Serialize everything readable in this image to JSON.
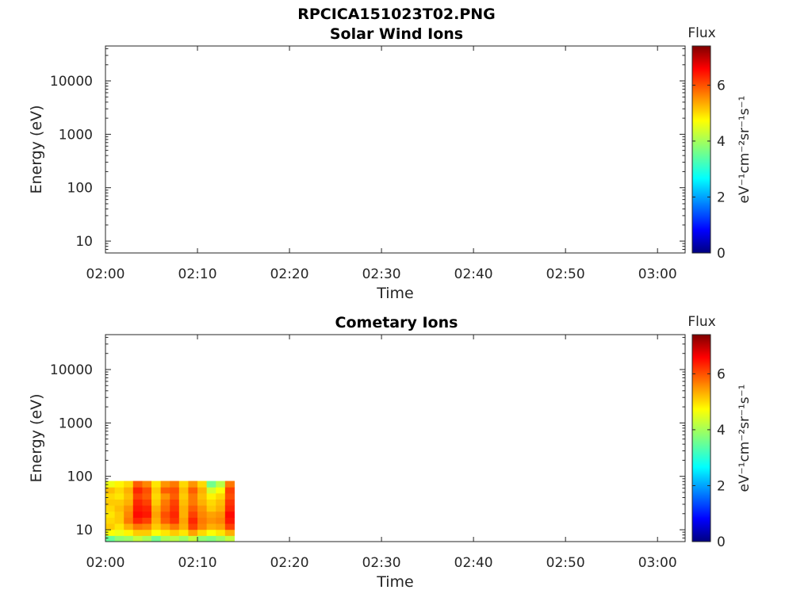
{
  "figure_title": "RPCICA151023T02.PNG",
  "chart_data": [
    {
      "type": "heatmap",
      "title": "Solar Wind Ions",
      "xlabel": "Time",
      "ylabel": "Energy (eV)",
      "x_ticks": [
        "02:00",
        "02:10",
        "02:20",
        "02:30",
        "02:40",
        "02:50",
        "03:00"
      ],
      "xlim": [
        "02:00",
        "03:03"
      ],
      "y_scale": "log",
      "y_ticks": [
        10,
        100,
        1000,
        10000
      ],
      "y_tick_labels": [
        "10",
        "100",
        "1000",
        "10000"
      ],
      "ylim": [
        6,
        45000
      ],
      "colorbar": {
        "label": "Flux",
        "unit": "eV⁻¹cm⁻²sr⁻¹s⁻¹",
        "range": [
          0,
          7.4
        ],
        "ticks": [
          "0",
          "2",
          "4",
          "6"
        ],
        "colormap": "jet"
      },
      "data": []
    },
    {
      "type": "heatmap",
      "title": "Cometary Ions",
      "xlabel": "Time",
      "ylabel": "Energy (eV)",
      "x_ticks": [
        "02:00",
        "02:10",
        "02:20",
        "02:30",
        "02:40",
        "02:50",
        "03:00"
      ],
      "xlim": [
        "02:00",
        "03:03"
      ],
      "y_scale": "log",
      "y_ticks": [
        10,
        100,
        1000,
        10000
      ],
      "y_tick_labels": [
        "10",
        "100",
        "1000",
        "10000"
      ],
      "ylim": [
        6,
        45000
      ],
      "colorbar": {
        "label": "Flux",
        "unit": "eV⁻¹cm⁻²sr⁻¹s⁻¹",
        "range": [
          0,
          7.4
        ],
        "ticks": [
          "0",
          "2",
          "4",
          "6"
        ],
        "colormap": "jet"
      },
      "data_region": {
        "time_start": "02:00",
        "time_end": "02:14",
        "energy_min": 6,
        "energy_max": 82
      },
      "data": [
        {
          "time": "02:00",
          "flux": [
            3.5,
            4.6,
            5.0,
            4.9,
            4.8,
            4.9,
            5.0,
            4.9,
            5.1,
            4.5
          ]
        },
        {
          "time": "02:01",
          "flux": [
            3.8,
            4.5,
            4.8,
            5.0,
            5.0,
            5.1,
            5.0,
            4.8,
            4.9,
            4.7
          ]
        },
        {
          "time": "02:02",
          "flux": [
            3.9,
            4.7,
            5.2,
            5.6,
            5.5,
            5.4,
            5.2,
            5.1,
            5.2,
            4.9
          ]
        },
        {
          "time": "02:03",
          "flux": [
            4.2,
            5.0,
            5.6,
            6.2,
            6.4,
            6.3,
            6.2,
            6.0,
            6.2,
            5.8
          ]
        },
        {
          "time": "02:04",
          "flux": [
            4.0,
            5.0,
            5.5,
            6.0,
            6.3,
            6.2,
            6.0,
            5.8,
            5.9,
            5.5
          ]
        },
        {
          "time": "02:05",
          "flux": [
            3.6,
            4.6,
            5.0,
            5.2,
            5.3,
            5.2,
            5.0,
            4.9,
            5.0,
            4.8
          ]
        },
        {
          "time": "02:06",
          "flux": [
            4.0,
            4.8,
            5.3,
            5.8,
            5.9,
            5.7,
            5.6,
            5.4,
            5.8,
            5.4
          ]
        },
        {
          "time": "02:07",
          "flux": [
            4.1,
            5.0,
            5.6,
            6.1,
            6.2,
            6.1,
            6.0,
            5.8,
            5.9,
            5.6
          ]
        },
        {
          "time": "02:08",
          "flux": [
            3.9,
            4.8,
            5.2,
            5.3,
            5.2,
            5.2,
            5.1,
            5.0,
            5.1,
            4.9
          ]
        },
        {
          "time": "02:09",
          "flux": [
            4.2,
            5.3,
            6.0,
            6.2,
            6.0,
            5.8,
            5.6,
            5.6,
            5.8,
            5.4
          ]
        },
        {
          "time": "02:10",
          "flux": [
            3.8,
            4.9,
            5.5,
            5.6,
            5.5,
            5.4,
            5.2,
            5.1,
            5.2,
            4.9
          ]
        },
        {
          "time": "02:11",
          "flux": [
            3.7,
            4.6,
            5.2,
            5.4,
            5.3,
            5.0,
            4.9,
            4.7,
            4.3,
            3.6
          ]
        },
        {
          "time": "02:12",
          "flux": [
            3.9,
            4.8,
            5.3,
            5.5,
            5.4,
            5.2,
            5.1,
            4.9,
            4.6,
            4.1
          ]
        },
        {
          "time": "02:13",
          "flux": [
            4.2,
            5.2,
            6.0,
            6.3,
            6.4,
            6.2,
            6.1,
            5.9,
            6.0,
            5.6
          ]
        }
      ]
    }
  ]
}
